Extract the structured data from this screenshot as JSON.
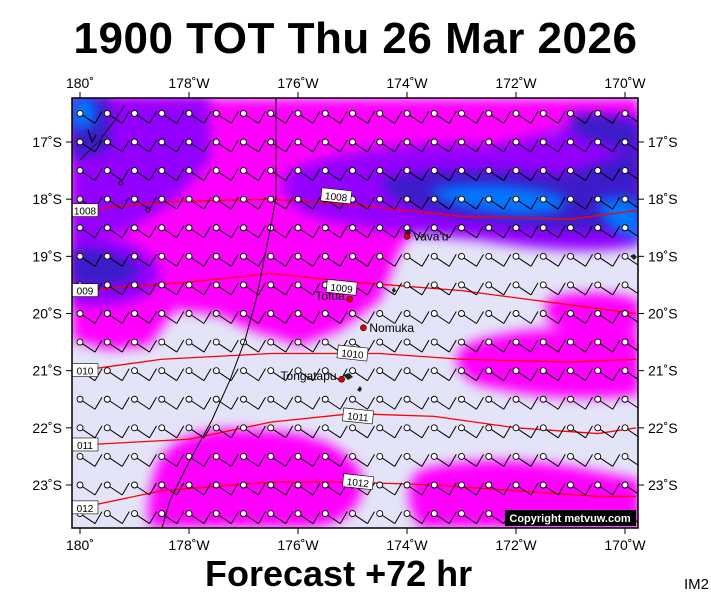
{
  "title": "1900 TOT Thu 26 Mar 2026",
  "subtitle": "Forecast +72 hr",
  "corner_label": "IM2",
  "copyright": "Copyright metvuw.com",
  "map": {
    "lon_range": [
      180,
      170
    ],
    "lat_range": [
      -16.3,
      -23.7
    ],
    "lon_ticks": [
      {
        "lon": 180,
        "label": "180˚"
      },
      {
        "lon": 178,
        "label": "178˚W"
      },
      {
        "lon": 176,
        "label": "176˚W"
      },
      {
        "lon": 174,
        "label": "174˚W"
      },
      {
        "lon": 172,
        "label": "172˚W"
      },
      {
        "lon": 170,
        "label": "170˚W"
      }
    ],
    "lat_ticks": [
      {
        "lat": -17,
        "label": "17˚S"
      },
      {
        "lat": -18,
        "label": "18˚S"
      },
      {
        "lat": -19,
        "label": "19˚S"
      },
      {
        "lat": -20,
        "label": "20˚S"
      },
      {
        "lat": -21,
        "label": "21˚S"
      },
      {
        "lat": -22,
        "label": "22˚S"
      },
      {
        "lat": -23,
        "label": "23˚S"
      }
    ],
    "colors": {
      "background": "#e4e4f8",
      "precip_light": "#ff00ff",
      "precip_medium": "#9400ff",
      "precip_heavy": "#3a1ec8",
      "precip_extreme": "#0078ff",
      "isobar": "#ff0000"
    },
    "places": [
      {
        "name": "Vava'u",
        "lon": 174.0,
        "lat": -18.65
      },
      {
        "name": "Tofua",
        "lon": 175.05,
        "lat": -19.75
      },
      {
        "name": "Nomuka",
        "lon": 174.8,
        "lat": -20.25
      },
      {
        "name": "Tongatapu",
        "lon": 175.2,
        "lat": -21.15
      }
    ],
    "isobars": [
      {
        "label": "1008",
        "points": [
          [
            180,
            -18.2
          ],
          [
            178.5,
            -18.05
          ],
          [
            176.5,
            -18.0
          ],
          [
            175,
            -18.1
          ],
          [
            173,
            -18.3
          ],
          [
            171,
            -18.35
          ],
          [
            169.8,
            -18.2
          ]
        ],
        "label_at": [
          175.3,
          -17.95
        ],
        "edge_label": "1008"
      },
      {
        "label": "1009",
        "points": [
          [
            180,
            -19.6
          ],
          [
            178,
            -19.45
          ],
          [
            176.5,
            -19.3
          ],
          [
            175,
            -19.45
          ],
          [
            173,
            -19.6
          ],
          [
            171,
            -19.85
          ],
          [
            169.8,
            -20.0
          ]
        ],
        "label_at": [
          175.2,
          -19.55
        ],
        "edge_label": "009"
      },
      {
        "label": "1010",
        "points": [
          [
            180,
            -21.0
          ],
          [
            178.5,
            -20.8
          ],
          [
            176.5,
            -20.7
          ],
          [
            174.5,
            -20.7
          ],
          [
            173,
            -20.8
          ],
          [
            171,
            -20.85
          ],
          [
            169.8,
            -20.8
          ]
        ],
        "label_at": [
          175.0,
          -20.7
        ],
        "edge_label": "010"
      },
      {
        "label": "1011",
        "points": [
          [
            180,
            -22.3
          ],
          [
            178,
            -22.2
          ],
          [
            176.5,
            -21.9
          ],
          [
            175,
            -21.75
          ],
          [
            173.5,
            -21.8
          ],
          [
            172,
            -22.0
          ],
          [
            170.5,
            -22.1
          ],
          [
            169.8,
            -22.0
          ]
        ],
        "label_at": [
          174.9,
          -21.8
        ],
        "edge_label": "011"
      },
      {
        "label": "1012",
        "points": [
          [
            180,
            -23.4
          ],
          [
            178.5,
            -23.1
          ],
          [
            176.5,
            -22.95
          ],
          [
            175,
            -22.95
          ],
          [
            173.5,
            -23.0
          ],
          [
            172,
            -23.1
          ],
          [
            170.5,
            -23.2
          ],
          [
            169.8,
            -23.2
          ]
        ],
        "label_at": [
          174.9,
          -22.95
        ],
        "edge_label": "012"
      }
    ]
  }
}
